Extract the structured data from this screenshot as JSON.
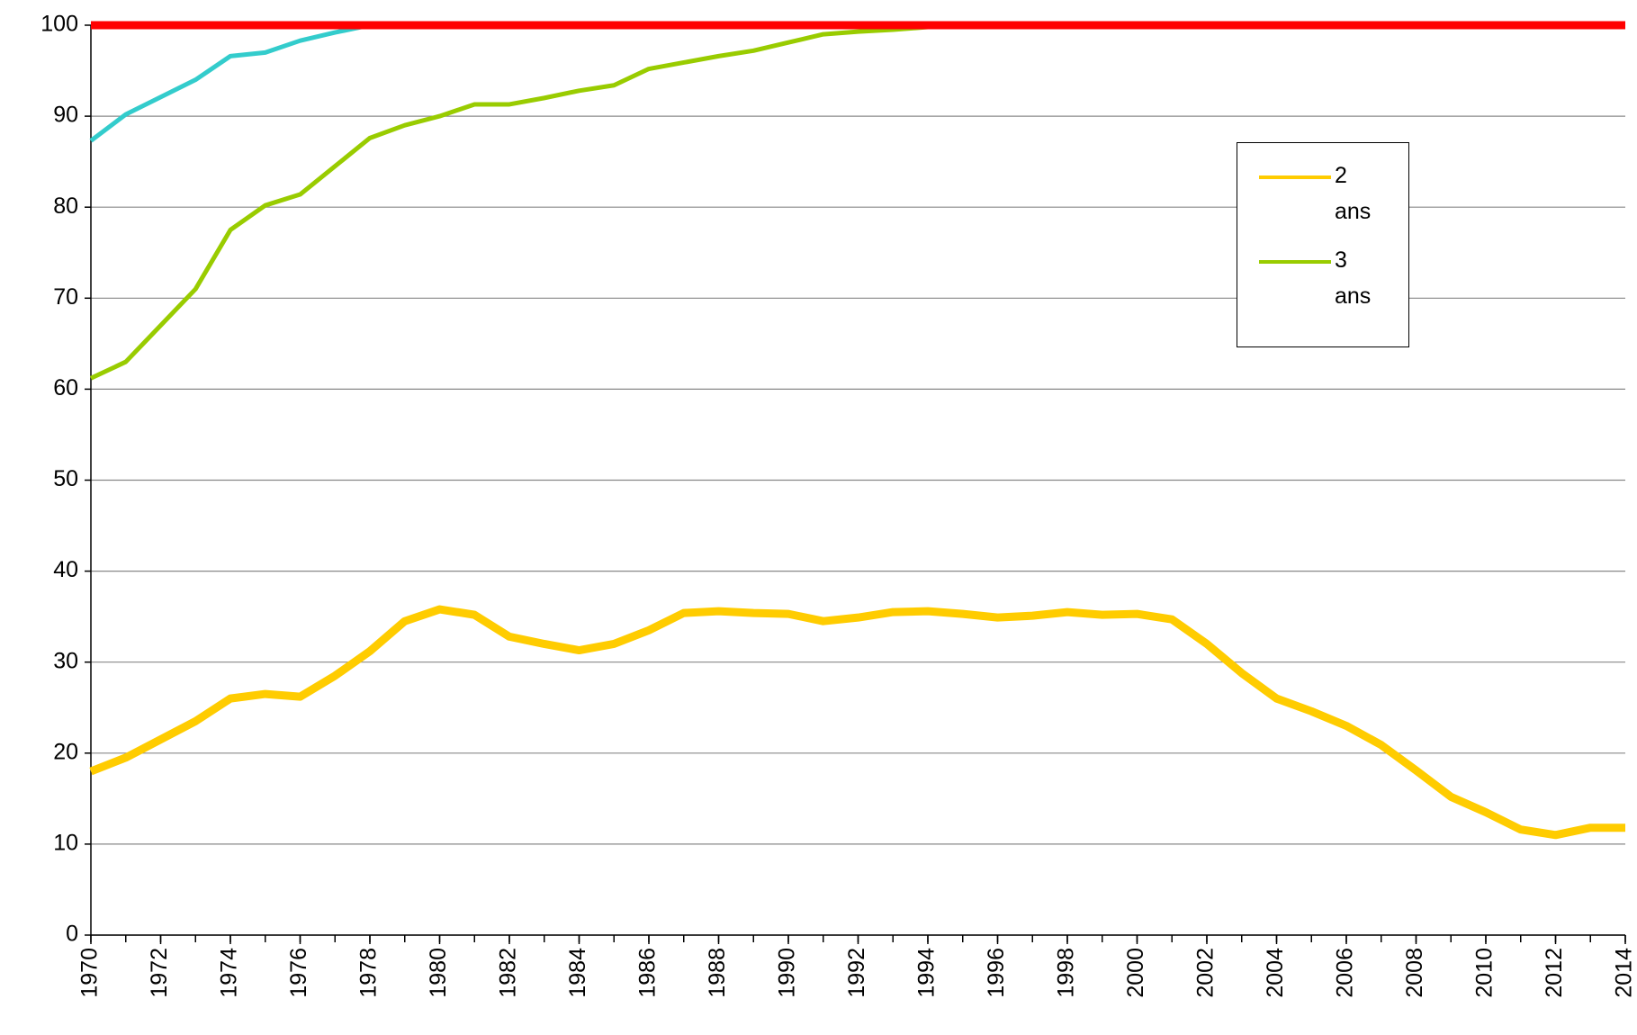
{
  "chart_data": {
    "type": "line",
    "x": [
      1970,
      1971,
      1972,
      1973,
      1974,
      1975,
      1976,
      1977,
      1978,
      1979,
      1980,
      1981,
      1982,
      1983,
      1984,
      1985,
      1986,
      1987,
      1988,
      1989,
      1990,
      1991,
      1992,
      1993,
      1994,
      1995,
      1996,
      1997,
      1998,
      1999,
      2000,
      2001,
      2002,
      2003,
      2004,
      2005,
      2006,
      2007,
      2008,
      2009,
      2010,
      2011,
      2012,
      2013,
      2014
    ],
    "series": [
      {
        "name": "2 ans",
        "color": "#ffcc00",
        "width": 9,
        "values": [
          18,
          19.5,
          21.5,
          23.5,
          26,
          26.5,
          26.2,
          28.5,
          31.2,
          34.5,
          35.8,
          35.2,
          32.8,
          32,
          31.3,
          32,
          33.5,
          35.4,
          35.6,
          35.4,
          35.3,
          34.5,
          34.9,
          35.5,
          35.6,
          35.3,
          34.9,
          35.1,
          35.5,
          35.2,
          35.3,
          34.7,
          32,
          28.8,
          26,
          24.6,
          23,
          20.9,
          18.1,
          15.2,
          13.5,
          11.6,
          11,
          11.8,
          11.8
        ]
      },
      {
        "name": "3 ans",
        "color": "#99cc00",
        "width": 5,
        "values": [
          61.2,
          63,
          67,
          71,
          77.5,
          80.2,
          81.4,
          84.5,
          87.6,
          89,
          90,
          91.3,
          91.3,
          92,
          92.8,
          93.4,
          95.2,
          95.9,
          96.6,
          97.2,
          98.1,
          99,
          99.3,
          99.5,
          99.8,
          100,
          100,
          100,
          100,
          100,
          100,
          100,
          100,
          100,
          100,
          100,
          100,
          100,
          100,
          100,
          100,
          100,
          100,
          100,
          100
        ]
      },
      {
        "color": "#33cccc",
        "width": 5,
        "values": [
          87.3,
          90.2,
          92.1,
          94,
          96.6,
          97,
          98.3,
          99.2,
          100,
          100,
          100,
          100,
          100,
          100,
          100,
          100,
          100,
          100,
          100,
          100,
          100,
          100,
          100,
          100,
          100,
          100,
          100,
          100,
          100,
          100,
          100,
          100,
          100,
          100,
          100,
          100,
          100,
          100,
          100,
          100,
          100,
          100,
          100,
          100,
          100
        ]
      },
      {
        "color": "#ff0000",
        "width": 9,
        "values": [
          100,
          100,
          100,
          100,
          100,
          100,
          100,
          100,
          100,
          100,
          100,
          100,
          100,
          100,
          100,
          100,
          100,
          100,
          100,
          100,
          100,
          100,
          100,
          100,
          100,
          100,
          100,
          100,
          100,
          100,
          100,
          100,
          100,
          100,
          100,
          100,
          100,
          100,
          100,
          100,
          100,
          100,
          100,
          100,
          100
        ]
      }
    ],
    "xlim": [
      1970,
      2014
    ],
    "xticks": [
      1970,
      1972,
      1974,
      1976,
      1978,
      1980,
      1982,
      1984,
      1986,
      1988,
      1990,
      1992,
      1994,
      1996,
      1998,
      2000,
      2002,
      2004,
      2006,
      2008,
      2010,
      2012,
      2014
    ],
    "ylim": [
      0,
      100
    ],
    "yticks": [
      0,
      10,
      20,
      30,
      40,
      50,
      60,
      70,
      80,
      90,
      100
    ],
    "grid": true
  }
}
